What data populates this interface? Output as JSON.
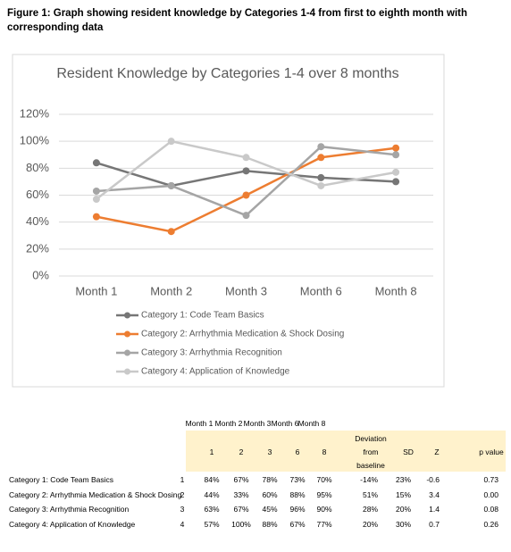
{
  "caption": "Figure 1: Graph showing resident knowledge by Categories 1-4 from first to eighth month with corresponding data",
  "chart_data": {
    "type": "line",
    "title": "Resident Knowledge by Categories 1-4 over 8 months",
    "categories": [
      "Month 1",
      "Month 2",
      "Month 3",
      "Month 6",
      "Month 8"
    ],
    "series": [
      {
        "name": "Category 1: Code Team Basics",
        "color": "#767676",
        "values": [
          84,
          67,
          78,
          73,
          70
        ]
      },
      {
        "name": "Category 2: Arrhythmia Medication & Shock Dosing",
        "color": "#ed7d31",
        "values": [
          44,
          33,
          60,
          88,
          95
        ]
      },
      {
        "name": "Category 3: Arrhythmia Recognition",
        "color": "#a5a5a5",
        "values": [
          63,
          67,
          45,
          96,
          90
        ]
      },
      {
        "name": "Category 4: Application of Knowledge",
        "color": "#c9c9c9",
        "values": [
          57,
          100,
          88,
          67,
          77
        ]
      }
    ],
    "ylim": [
      0,
      120
    ],
    "yticks": [
      {
        "value": 0,
        "label": "0%"
      },
      {
        "value": 20,
        "label": "20%"
      },
      {
        "value": 40,
        "label": "40%"
      },
      {
        "value": 60,
        "label": "60%"
      },
      {
        "value": 80,
        "label": "80%"
      },
      {
        "value": 100,
        "label": "100%"
      },
      {
        "value": 120,
        "label": "120%"
      }
    ],
    "grid": true,
    "legend": "bottom"
  },
  "table": {
    "month_header": [
      "Month 1",
      "Month 2",
      "Month 3",
      "Month 6",
      "Month 8"
    ],
    "header": [
      "1",
      "2",
      "3",
      "6",
      "8",
      "Deviation from baseline",
      "SD",
      "Z",
      "p value"
    ],
    "rows": [
      [
        "Category 1: Code Team Basics",
        "1",
        "84%",
        "67%",
        "78%",
        "73%",
        "70%",
        "-14%",
        "23%",
        "-0.6",
        "0.73"
      ],
      [
        "Category 2: Arrhythmia Medication & Shock Dosing",
        "2",
        "44%",
        "33%",
        "60%",
        "88%",
        "95%",
        "51%",
        "15%",
        "3.4",
        "0.00"
      ],
      [
        "Category 3: Arrhythmia Recognition",
        "3",
        "63%",
        "67%",
        "45%",
        "96%",
        "90%",
        "28%",
        "20%",
        "1.4",
        "0.08"
      ],
      [
        "Category 4: Application of Knowledge",
        "4",
        "57%",
        "100%",
        "88%",
        "67%",
        "77%",
        "20%",
        "30%",
        "0.7",
        "0.26"
      ]
    ]
  }
}
